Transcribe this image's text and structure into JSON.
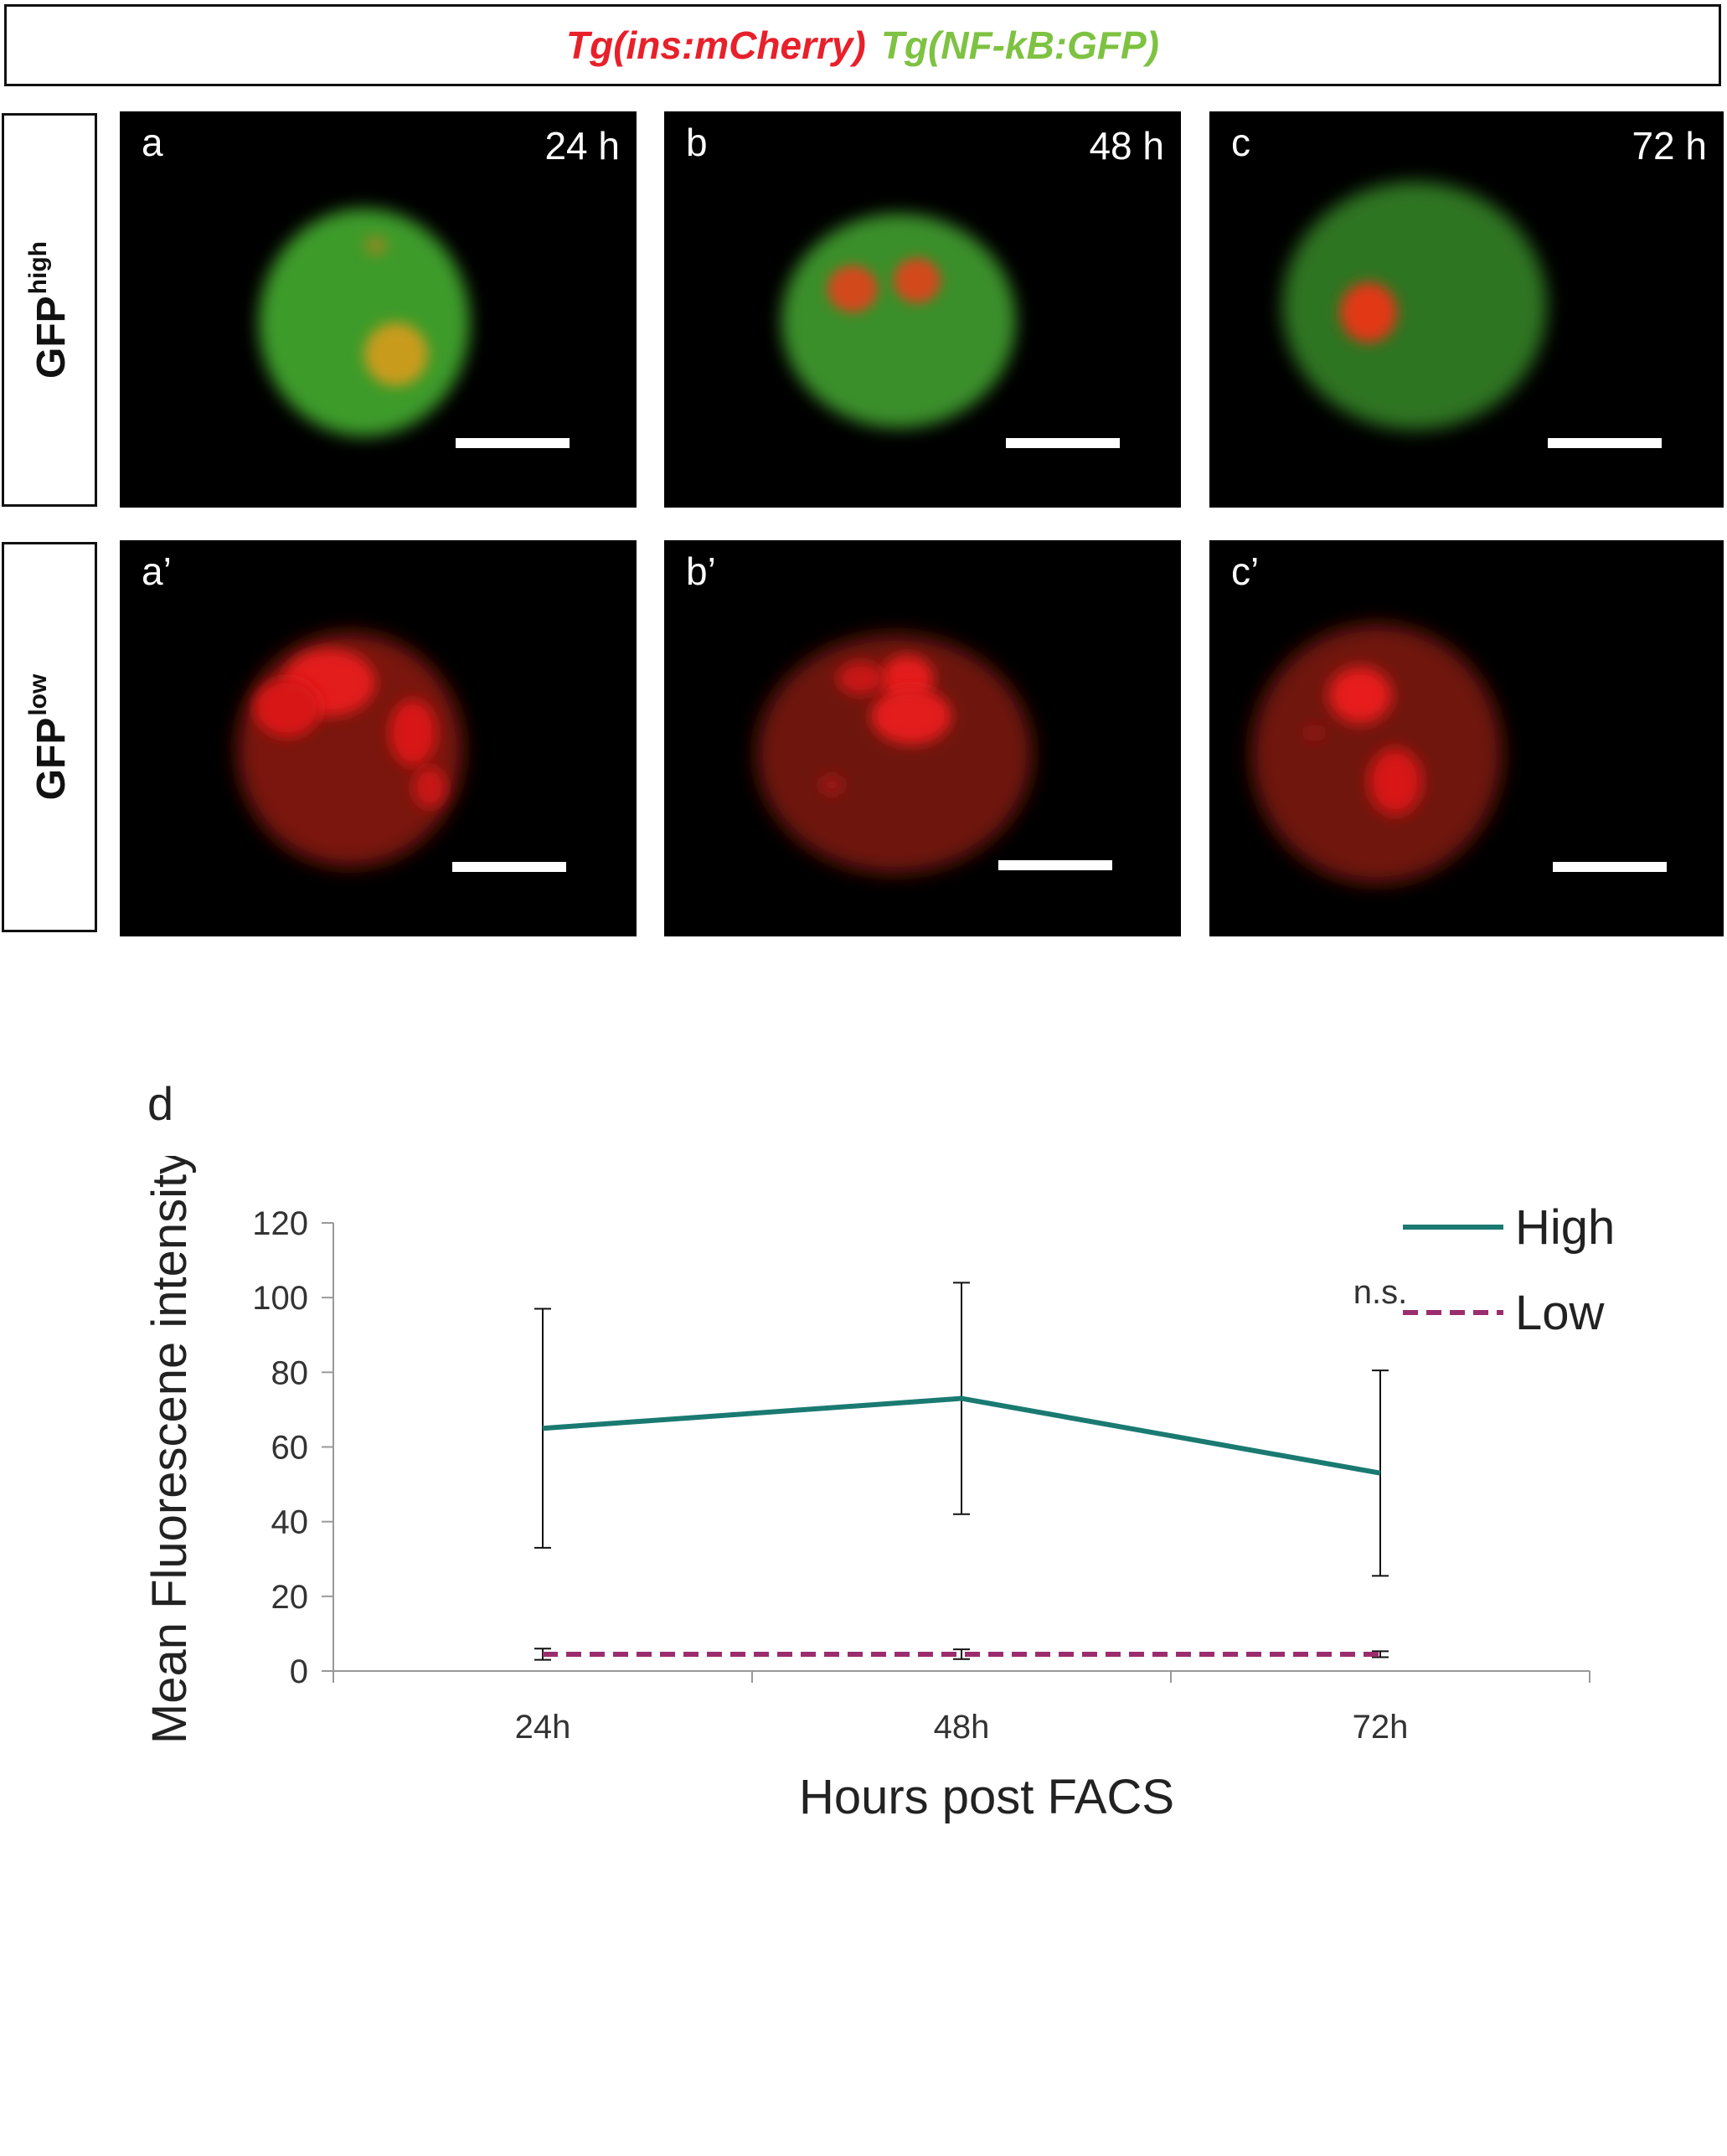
{
  "header": {
    "title_red": "Tg(ins:mCherry)",
    "title_green": "Tg(NF-kB:GFP)",
    "colors": {
      "red": "#e8202a",
      "green": "#7ec242"
    }
  },
  "rows": [
    {
      "label": "GFP",
      "superscript": "high"
    },
    {
      "label": "GFP",
      "superscript": "low"
    }
  ],
  "panels": [
    {
      "letter": "a",
      "time": "24 h"
    },
    {
      "letter": "b",
      "time": "48 h"
    },
    {
      "letter": "c",
      "time": "72 h"
    },
    {
      "letter": "a’",
      "time": ""
    },
    {
      "letter": "b’",
      "time": ""
    },
    {
      "letter": "c’",
      "time": ""
    }
  ],
  "panel_d_letter": "d",
  "chart_data": {
    "type": "line",
    "categories": [
      "24h",
      "48h",
      "72h"
    ],
    "xlabel": "Hours post FACS",
    "ylabel": "Mean Fluorescene intensity",
    "ylim": [
      0,
      120
    ],
    "yticks": [
      0,
      20,
      40,
      60,
      80,
      100,
      120
    ],
    "grid": false,
    "legend_position": "top-right",
    "series": [
      {
        "name": "High",
        "values": [
          65,
          73,
          53
        ],
        "error": [
          32,
          31,
          27.5
        ],
        "color": "#1a7a72",
        "style": "solid"
      },
      {
        "name": "Low",
        "values": [
          4.5,
          4.5,
          4.5
        ],
        "error": [
          1.5,
          1.3,
          0.8
        ],
        "color": "#9b2d6e",
        "style": "dashed"
      }
    ],
    "annotations": [
      {
        "text": "n.s.",
        "category": "72h"
      }
    ]
  }
}
